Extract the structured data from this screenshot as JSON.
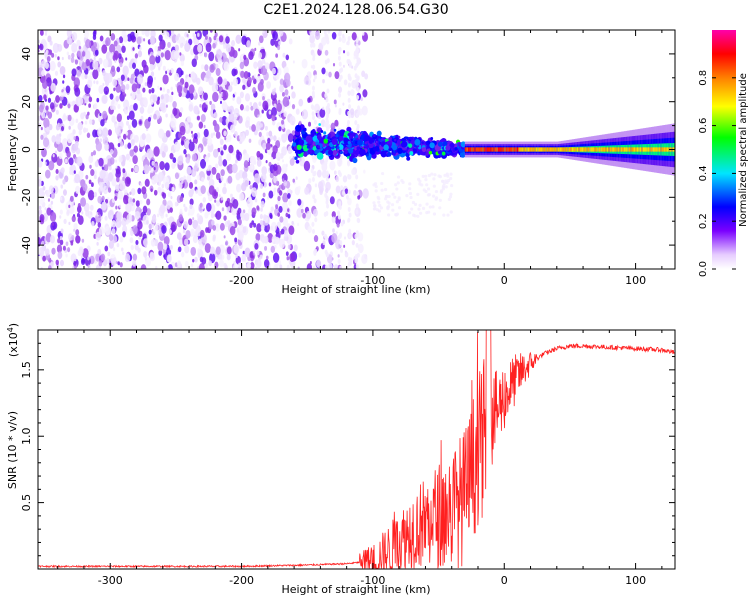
{
  "title": "C2E1.2024.128.06.54.G30",
  "chart_data": [
    {
      "type": "heatmap",
      "xlabel": "Height of straight line (km)",
      "ylabel": "Frequency (Hz)",
      "xlim": [
        -355,
        130
      ],
      "ylim": [
        -50,
        50
      ],
      "xticks": [
        -300,
        -200,
        -100,
        0,
        100
      ],
      "xtick_labels": [
        "-300",
        "-200",
        "-100",
        "0",
        "100"
      ],
      "yticks": [
        -40,
        -20,
        0,
        20,
        40
      ],
      "ytick_labels": [
        "-40",
        "-20",
        "0",
        "20",
        "40"
      ],
      "colorbar": {
        "label": "Normalized spectral amplitude",
        "range": [
          0,
          1
        ],
        "ticks": [
          0.0,
          0.2,
          0.4,
          0.6,
          0.8
        ],
        "tick_labels": [
          "0.0",
          "0.2",
          "0.4",
          "0.6",
          "0.8"
        ],
        "colormap": [
          "#ffffff",
          "#e9d8ff",
          "#8a2be2",
          "#3a00ff",
          "#0000ff",
          "#00e5ff",
          "#00ff00",
          "#ffff00",
          "#ff8000",
          "#ff0000",
          "#ff00aa"
        ]
      },
      "regions": [
        {
          "x": [
            -355,
            -160
          ],
          "freq": [
            -50,
            50
          ],
          "amplitude": 0.1,
          "description": "noise"
        },
        {
          "x": [
            -160,
            -30
          ],
          "freq": [
            -12,
            12
          ],
          "amplitude": 0.45
        },
        {
          "x": [
            -30,
            130
          ],
          "freq": [
            -3,
            3
          ],
          "amplitude": 0.9
        }
      ],
      "grid": false
    },
    {
      "type": "line",
      "xlabel": "Height of straight line (km)",
      "ylabel": "SNR (10 * v/v)",
      "multiplier_label": "(x10",
      "multiplier_exp": "4",
      "multiplier_close": ")",
      "xlim": [
        -355,
        130
      ],
      "ylim": [
        0,
        1.8
      ],
      "xticks": [
        -300,
        -200,
        -100,
        0,
        100
      ],
      "xtick_labels": [
        "-300",
        "-200",
        "-100",
        "0",
        "100"
      ],
      "yticks": [
        0.5,
        1.0,
        1.5
      ],
      "ytick_labels": [
        "0.5",
        "1.0",
        "1.5"
      ],
      "series": [
        {
          "color": "#ff2020",
          "x": [
            -355,
            -300,
            -250,
            -200,
            -150,
            -120,
            -100,
            -90,
            -80,
            -70,
            -60,
            -50,
            -40,
            -30,
            -25,
            -20,
            -15,
            -10,
            -5,
            0,
            10,
            20,
            30,
            40,
            50,
            60,
            80,
            100,
            120,
            130
          ],
          "y": [
            0.02,
            0.02,
            0.02,
            0.02,
            0.03,
            0.04,
            0.06,
            0.12,
            0.2,
            0.3,
            0.35,
            0.4,
            0.45,
            0.55,
            0.7,
            0.9,
            1.0,
            1.1,
            1.2,
            1.3,
            1.45,
            1.55,
            1.62,
            1.66,
            1.68,
            1.68,
            1.67,
            1.66,
            1.65,
            1.63
          ]
        }
      ],
      "grid": false
    }
  ]
}
